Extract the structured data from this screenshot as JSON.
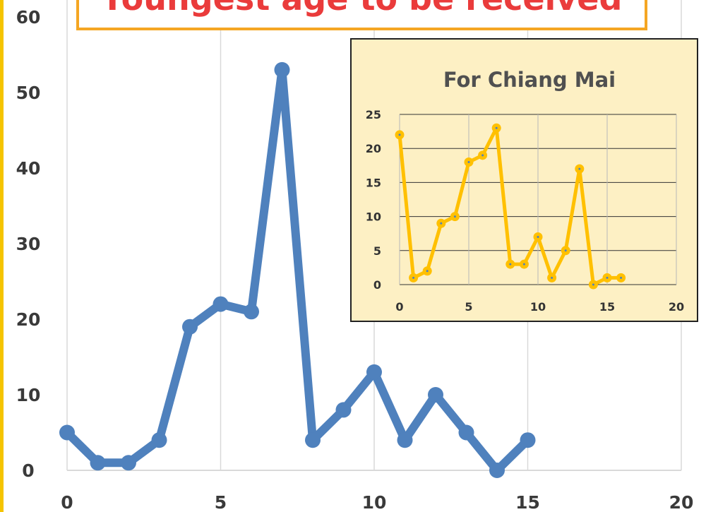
{
  "colors": {
    "background": "#ffffff",
    "left_border": "#f5c400",
    "title_box_border": "#f5a623",
    "title_text": "#ea3b3b",
    "main_line": "#4f81bd",
    "grid": "#d9d9d9",
    "inset_background": "#fdf0c4",
    "inset_border": "#222222",
    "inset_line": "#ffc000",
    "inset_title_text": "#505050",
    "inset_grid": "#333333"
  },
  "chart_data": [
    {
      "type": "line",
      "title": "Youngest age to be received",
      "xlim": [
        0,
        20
      ],
      "ylim": [
        0,
        60
      ],
      "x_ticks": [
        0,
        5,
        10,
        15,
        20
      ],
      "y_ticks": [
        0,
        10,
        20,
        30,
        40,
        50,
        60
      ],
      "grid": "vertical",
      "series": [
        {
          "x": [
            0,
            1,
            2,
            3,
            4,
            5,
            6,
            7,
            8,
            9,
            10,
            11,
            12,
            13,
            14,
            15
          ],
          "y": [
            5,
            1,
            1,
            4,
            19,
            22,
            21,
            53,
            4,
            8,
            13,
            4,
            10,
            5,
            0,
            4
          ]
        }
      ]
    },
    {
      "type": "line",
      "title": "For Chiang Mai",
      "xlim": [
        0,
        20
      ],
      "ylim": [
        0,
        25
      ],
      "x_ticks": [
        0,
        5,
        10,
        15,
        20
      ],
      "y_ticks": [
        0,
        5,
        10,
        15,
        20,
        25
      ],
      "grid": "both",
      "series": [
        {
          "x": [
            0,
            1,
            2,
            3,
            4,
            5,
            6,
            7,
            8,
            9,
            10,
            11,
            12,
            13,
            14,
            15,
            16
          ],
          "y": [
            22,
            1,
            2,
            9,
            10,
            18,
            19,
            23,
            3,
            3,
            7,
            1,
            5,
            17,
            0,
            1,
            1
          ]
        }
      ]
    }
  ]
}
